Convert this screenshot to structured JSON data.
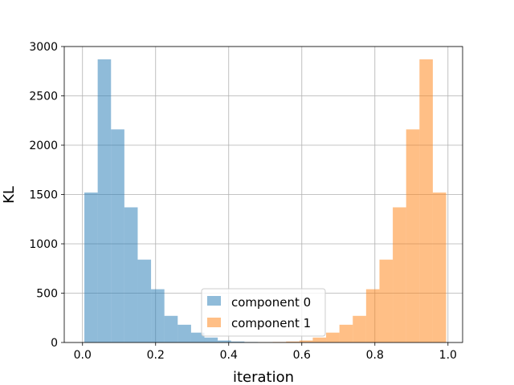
{
  "chart_data": {
    "type": "bar",
    "title": "",
    "xlabel": "iteration",
    "ylabel": "KL",
    "xlim": [
      -0.05,
      1.04
    ],
    "ylim": [
      0,
      3000
    ],
    "xticks": [
      0.0,
      0.2,
      0.4,
      0.6,
      0.8,
      1.0
    ],
    "xtick_labels": [
      "0.0",
      "0.2",
      "0.4",
      "0.6",
      "0.8",
      "1.0"
    ],
    "yticks": [
      0,
      500,
      1000,
      1500,
      2000,
      2500,
      3000
    ],
    "ytick_labels": [
      "0",
      "500",
      "1000",
      "1500",
      "2000",
      "2500",
      "3000"
    ],
    "grid": true,
    "legend_position": "bottom-center",
    "bar_alpha": 0.5,
    "series": [
      {
        "name": "component 0",
        "color": "#1f77b4",
        "bin_edges": [
          0.005,
          0.0415,
          0.078,
          0.1145,
          0.151,
          0.1875,
          0.224,
          0.2605,
          0.297,
          0.3335,
          0.37,
          0.4065,
          0.443,
          0.4795,
          0.516,
          0.5525,
          0.589
        ],
        "counts": [
          1520,
          2870,
          2160,
          1370,
          840,
          540,
          270,
          180,
          100,
          50,
          20,
          10,
          5,
          3,
          2,
          1
        ]
      },
      {
        "name": "component 1",
        "color": "#ff7f0e",
        "bin_edges": [
          0.411,
          0.4475,
          0.484,
          0.5205,
          0.557,
          0.5935,
          0.63,
          0.6665,
          0.703,
          0.7395,
          0.776,
          0.8125,
          0.849,
          0.8855,
          0.922,
          0.9585,
          0.995
        ],
        "counts": [
          1,
          2,
          3,
          5,
          10,
          20,
          50,
          100,
          180,
          270,
          540,
          840,
          1370,
          2160,
          2870,
          1520
        ]
      }
    ]
  }
}
